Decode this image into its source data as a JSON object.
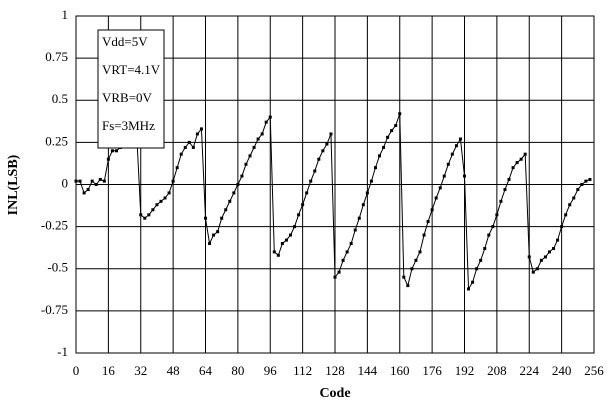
{
  "chart_data": {
    "type": "line",
    "xlabel": "Code",
    "ylabel": "INL(LSB)",
    "color": "#000000",
    "grid": true,
    "annotations": [
      "Vdd=5V",
      "VRT=4.1V",
      "VRB=0V",
      "Fs=3MHz"
    ],
    "x": [
      0,
      2,
      4,
      6,
      8,
      10,
      12,
      14,
      16,
      18,
      20,
      22,
      24,
      26,
      28,
      30,
      32,
      34,
      36,
      38,
      40,
      42,
      44,
      46,
      48,
      50,
      52,
      54,
      56,
      58,
      60,
      62,
      64,
      66,
      68,
      70,
      72,
      74,
      76,
      78,
      80,
      82,
      84,
      86,
      88,
      90,
      92,
      94,
      96,
      98,
      100,
      102,
      104,
      106,
      108,
      110,
      112,
      114,
      116,
      118,
      120,
      122,
      124,
      126,
      128,
      130,
      132,
      134,
      136,
      138,
      140,
      142,
      144,
      146,
      148,
      150,
      152,
      154,
      156,
      158,
      160,
      162,
      164,
      166,
      168,
      170,
      172,
      174,
      176,
      178,
      180,
      182,
      184,
      186,
      188,
      190,
      192,
      194,
      196,
      198,
      200,
      202,
      204,
      206,
      208,
      210,
      212,
      214,
      216,
      218,
      220,
      222,
      224,
      226,
      228,
      230,
      232,
      234,
      236,
      238,
      240,
      242,
      244,
      246,
      248,
      250,
      252,
      254
    ],
    "values": [
      0.02,
      0.02,
      -0.05,
      -0.03,
      0.02,
      0.0,
      0.03,
      0.02,
      0.15,
      0.2,
      0.2,
      0.22,
      0.28,
      0.25,
      0.27,
      0.3,
      -0.18,
      -0.2,
      -0.18,
      -0.15,
      -0.12,
      -0.1,
      -0.08,
      -0.05,
      0.02,
      0.1,
      0.18,
      0.22,
      0.25,
      0.22,
      0.3,
      0.33,
      -0.2,
      -0.35,
      -0.3,
      -0.28,
      -0.2,
      -0.15,
      -0.1,
      -0.05,
      0.0,
      0.05,
      0.12,
      0.17,
      0.22,
      0.27,
      0.3,
      0.37,
      0.4,
      -0.4,
      -0.42,
      -0.35,
      -0.33,
      -0.3,
      -0.25,
      -0.18,
      -0.12,
      -0.05,
      0.02,
      0.08,
      0.15,
      0.2,
      0.24,
      0.3,
      -0.55,
      -0.52,
      -0.45,
      -0.4,
      -0.35,
      -0.27,
      -0.2,
      -0.12,
      -0.05,
      0.02,
      0.1,
      0.17,
      0.22,
      0.28,
      0.32,
      0.35,
      0.42,
      -0.55,
      -0.6,
      -0.5,
      -0.45,
      -0.4,
      -0.3,
      -0.22,
      -0.15,
      -0.08,
      -0.02,
      0.05,
      0.12,
      0.18,
      0.23,
      0.27,
      0.05,
      -0.62,
      -0.58,
      -0.5,
      -0.45,
      -0.38,
      -0.3,
      -0.25,
      -0.18,
      -0.1,
      -0.03,
      0.03,
      0.1,
      0.13,
      0.15,
      0.18,
      -0.43,
      -0.52,
      -0.5,
      -0.45,
      -0.43,
      -0.4,
      -0.38,
      -0.33,
      -0.25,
      -0.18,
      -0.12,
      -0.08,
      -0.03,
      0.0,
      0.02,
      0.03
    ],
    "xlim": [
      0,
      256
    ],
    "xticks": [
      0,
      16,
      32,
      48,
      64,
      80,
      96,
      112,
      128,
      144,
      160,
      176,
      192,
      208,
      224,
      240,
      256
    ],
    "ylim": [
      -1,
      1
    ],
    "yticks": [
      -1,
      -0.75,
      -0.5,
      -0.25,
      0,
      0.25,
      0.5,
      0.75,
      1
    ]
  }
}
